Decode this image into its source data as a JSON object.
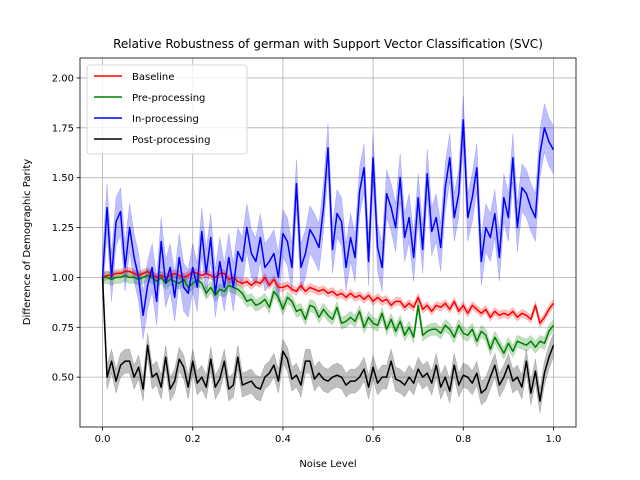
{
  "chart_data": {
    "type": "line",
    "title": "Relative Robustness of german with Support Vector Classification (SVC)",
    "xlabel": "Noise Level",
    "ylabel": "Difference of Demographic Parity",
    "xlim": [
      -0.05,
      1.05
    ],
    "ylim": [
      0.25,
      2.1
    ],
    "x_ticks": [
      "0.0",
      "0.2",
      "0.4",
      "0.6",
      "0.8",
      "1.0"
    ],
    "x_tick_values": [
      0,
      0.2,
      0.4,
      0.6,
      0.8,
      1.0
    ],
    "y_ticks": [
      "0.50",
      "0.75",
      "1.00",
      "1.25",
      "1.50",
      "1.75",
      "2.00"
    ],
    "y_tick_values": [
      0.5,
      0.75,
      1.0,
      1.25,
      1.5,
      1.75,
      2.0
    ],
    "grid": true,
    "legend_position": "top-left",
    "x_start": 0,
    "x_step": 0.01,
    "series": [
      {
        "name": "Baseline",
        "color": "#ff0000",
        "band": 0.02,
        "values": [
          1.0,
          1.01,
          1.01,
          1.02,
          1.02,
          1.03,
          1.03,
          1.02,
          1.01,
          1.02,
          1.03,
          1.01,
          1.0,
          1.01,
          1.0,
          1.01,
          1.02,
          1.01,
          1.0,
          1.01,
          1.03,
          1.02,
          1.01,
          1.02,
          1.01,
          1.0,
          1.02,
          1.02,
          0.99,
          1.0,
          0.98,
          0.97,
          0.98,
          0.96,
          0.98,
          0.97,
          1.0,
          0.96,
          0.99,
          0.95,
          0.95,
          0.96,
          0.94,
          0.93,
          0.96,
          0.93,
          0.95,
          0.94,
          0.93,
          0.94,
          0.92,
          0.93,
          0.91,
          0.92,
          0.9,
          0.92,
          0.9,
          0.91,
          0.89,
          0.91,
          0.88,
          0.9,
          0.88,
          0.89,
          0.86,
          0.88,
          0.88,
          0.85,
          0.87,
          0.85,
          0.9,
          0.84,
          0.86,
          0.83,
          0.86,
          0.85,
          0.87,
          0.84,
          0.88,
          0.83,
          0.86,
          0.82,
          0.86,
          0.84,
          0.82,
          0.84,
          0.8,
          0.83,
          0.81,
          0.82,
          0.81,
          0.83,
          0.8,
          0.82,
          0.81,
          0.79,
          0.86,
          0.77,
          0.8,
          0.84,
          0.87
        ]
      },
      {
        "name": "Pre-processing",
        "color": "#008000",
        "band": 0.03,
        "values": [
          1.0,
          1.0,
          0.99,
          1.0,
          1.0,
          1.01,
          1.0,
          1.0,
          0.99,
          1.0,
          1.01,
          1.0,
          0.98,
          1.0,
          0.97,
          0.99,
          0.98,
          0.97,
          0.99,
          0.95,
          0.97,
          0.99,
          0.97,
          0.92,
          0.95,
          0.91,
          0.94,
          0.93,
          0.96,
          0.95,
          0.94,
          0.92,
          0.88,
          0.89,
          0.86,
          0.87,
          0.89,
          0.85,
          0.93,
          0.9,
          0.84,
          0.9,
          0.88,
          0.83,
          0.84,
          0.79,
          0.86,
          0.85,
          0.8,
          0.84,
          0.81,
          0.79,
          0.85,
          0.77,
          0.78,
          0.8,
          0.78,
          0.83,
          0.75,
          0.8,
          0.77,
          0.76,
          0.82,
          0.74,
          0.79,
          0.73,
          0.78,
          0.71,
          0.75,
          0.7,
          0.86,
          0.71,
          0.73,
          0.74,
          0.74,
          0.72,
          0.76,
          0.74,
          0.7,
          0.76,
          0.72,
          0.71,
          0.74,
          0.68,
          0.73,
          0.71,
          0.64,
          0.7,
          0.66,
          0.62,
          0.67,
          0.63,
          0.68,
          0.67,
          0.66,
          0.68,
          0.65,
          0.68,
          0.67,
          0.73,
          0.76
        ]
      },
      {
        "name": "In-processing",
        "color": "#0000ff",
        "band": 0.12,
        "values": [
          1.0,
          1.35,
          1.0,
          1.28,
          1.33,
          1.05,
          1.25,
          1.1,
          1.0,
          0.81,
          0.96,
          1.05,
          0.88,
          1.18,
          0.97,
          1.05,
          0.9,
          1.1,
          0.95,
          0.92,
          1.05,
          0.95,
          1.23,
          1.02,
          1.2,
          0.92,
          1.08,
          0.95,
          1.1,
          0.95,
          1.13,
          1.08,
          1.25,
          1.12,
          1.08,
          1.2,
          1.05,
          1.08,
          1.12,
          1.0,
          1.22,
          1.18,
          1.05,
          1.47,
          1.05,
          1.12,
          1.24,
          1.2,
          1.15,
          1.35,
          1.65,
          1.14,
          1.32,
          1.28,
          1.05,
          1.2,
          1.1,
          1.43,
          1.55,
          1.08,
          1.6,
          1.15,
          1.05,
          1.42,
          1.35,
          1.25,
          1.5,
          1.2,
          1.3,
          1.1,
          1.4,
          1.14,
          1.52,
          1.23,
          1.3,
          1.15,
          1.45,
          1.6,
          1.3,
          1.42,
          1.79,
          1.3,
          1.4,
          1.55,
          1.08,
          1.25,
          1.2,
          1.32,
          1.1,
          1.4,
          1.3,
          1.6,
          1.25,
          1.45,
          1.42,
          1.35,
          1.3,
          1.62,
          1.75,
          1.68,
          1.64
        ]
      },
      {
        "name": "Post-processing",
        "color": "#000000",
        "band": 0.06,
        "values": [
          1.0,
          0.5,
          0.58,
          0.48,
          0.56,
          0.58,
          0.58,
          0.5,
          0.55,
          0.44,
          0.66,
          0.5,
          0.52,
          0.45,
          0.6,
          0.44,
          0.48,
          0.59,
          0.55,
          0.45,
          0.58,
          0.47,
          0.5,
          0.45,
          0.59,
          0.45,
          0.49,
          0.58,
          0.44,
          0.46,
          0.6,
          0.46,
          0.47,
          0.48,
          0.45,
          0.44,
          0.5,
          0.52,
          0.56,
          0.48,
          0.63,
          0.59,
          0.49,
          0.51,
          0.46,
          0.58,
          0.58,
          0.49,
          0.52,
          0.49,
          0.48,
          0.5,
          0.51,
          0.5,
          0.46,
          0.48,
          0.48,
          0.5,
          0.54,
          0.45,
          0.55,
          0.47,
          0.5,
          0.5,
          0.58,
          0.49,
          0.48,
          0.46,
          0.5,
          0.47,
          0.54,
          0.5,
          0.52,
          0.47,
          0.56,
          0.45,
          0.5,
          0.43,
          0.56,
          0.46,
          0.51,
          0.5,
          0.47,
          0.52,
          0.42,
          0.44,
          0.5,
          0.56,
          0.46,
          0.5,
          0.56,
          0.48,
          0.5,
          0.45,
          0.58,
          0.42,
          0.53,
          0.38,
          0.52,
          0.6,
          0.66
        ]
      }
    ]
  }
}
